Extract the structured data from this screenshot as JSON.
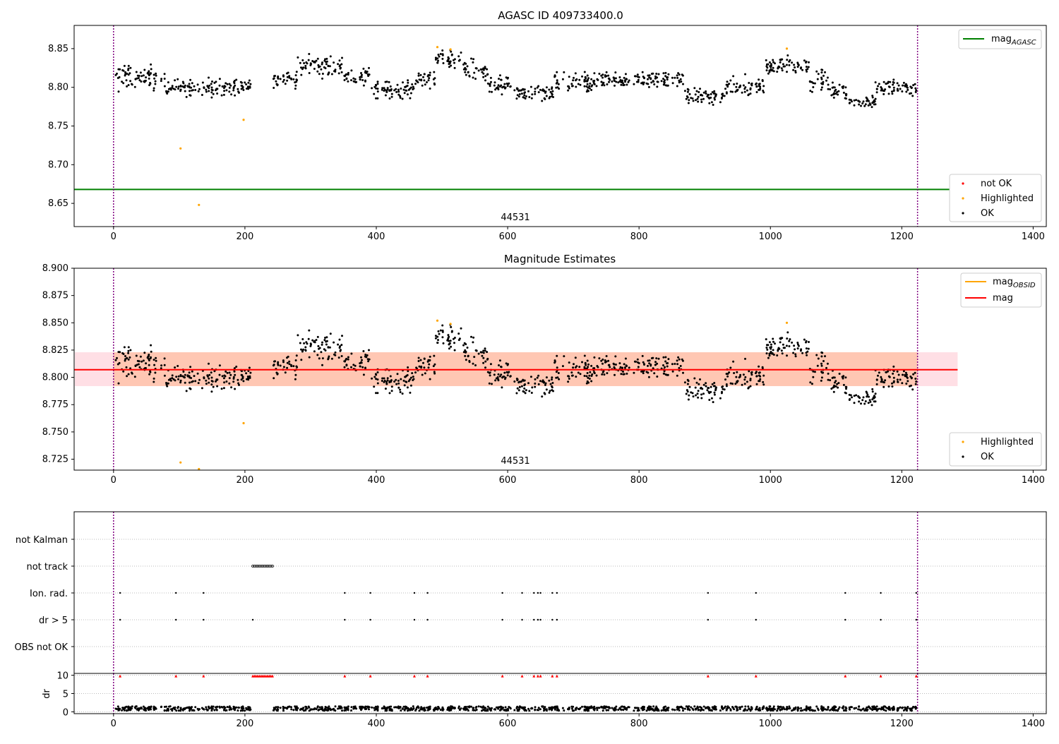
{
  "figure": {
    "panel1_title": "AGASC ID 409733400.0",
    "panel2_title": "Magnitude Estimates",
    "obsid_label": "44531"
  },
  "legends": {
    "panel1_line": "mag",
    "panel1_line_sub": "AGASC",
    "panel1_points": [
      "not OK",
      "Highlighted",
      "OK"
    ],
    "panel2_line_obsid": "mag",
    "panel2_line_obsid_sub": "OBSID",
    "panel2_line_mag": "mag",
    "panel2_points": [
      "Highlighted",
      "OK"
    ]
  },
  "colors": {
    "ok": "#000000",
    "highlighted": "#ffa500",
    "not_ok": "#ff0000",
    "agasc_line": "#008000",
    "mag_line": "#ff0000",
    "obsid_line": "#ffa500",
    "band_obsid": "#ffb38a",
    "band_overall": "#ffc0cb",
    "vline": "#800080",
    "flag_point": "#000000",
    "dr_flag_marker": "#ff0000"
  },
  "chart_data": [
    {
      "type": "scatter",
      "title": "AGASC ID 409733400.0",
      "xlim": [
        -60,
        1420
      ],
      "ylim": [
        8.62,
        8.88
      ],
      "xticks": [
        0,
        200,
        400,
        600,
        800,
        1000,
        1200,
        1400
      ],
      "yticks": [
        "8.65",
        "8.70",
        "8.75",
        "8.80",
        "8.85"
      ],
      "vlines_x": [
        0,
        1224
      ],
      "hline": {
        "name": "mag_AGASC",
        "y": 8.668
      },
      "gaps": [
        [
          210,
          243
        ]
      ],
      "segments": [
        {
          "x0": 0,
          "x1": 80,
          "base": 8.812,
          "amp": 0.012
        },
        {
          "x0": 80,
          "x1": 210,
          "base": 8.8,
          "amp": 0.008
        },
        {
          "x0": 243,
          "x1": 280,
          "base": 8.81,
          "amp": 0.008
        },
        {
          "x0": 280,
          "x1": 350,
          "base": 8.828,
          "amp": 0.01
        },
        {
          "x0": 350,
          "x1": 390,
          "base": 8.815,
          "amp": 0.008
        },
        {
          "x0": 390,
          "x1": 460,
          "base": 8.797,
          "amp": 0.008
        },
        {
          "x0": 460,
          "x1": 490,
          "base": 8.812,
          "amp": 0.01
        },
        {
          "x0": 490,
          "x1": 530,
          "base": 8.836,
          "amp": 0.008
        },
        {
          "x0": 530,
          "x1": 570,
          "base": 8.823,
          "amp": 0.01
        },
        {
          "x0": 570,
          "x1": 610,
          "base": 8.802,
          "amp": 0.008
        },
        {
          "x0": 610,
          "x1": 670,
          "base": 8.792,
          "amp": 0.008
        },
        {
          "x0": 670,
          "x1": 730,
          "base": 8.805,
          "amp": 0.01
        },
        {
          "x0": 730,
          "x1": 810,
          "base": 8.809,
          "amp": 0.008
        },
        {
          "x0": 810,
          "x1": 870,
          "base": 8.81,
          "amp": 0.008
        },
        {
          "x0": 870,
          "x1": 930,
          "base": 8.788,
          "amp": 0.008
        },
        {
          "x0": 930,
          "x1": 990,
          "base": 8.8,
          "amp": 0.01
        },
        {
          "x0": 990,
          "x1": 1060,
          "base": 8.828,
          "amp": 0.008
        },
        {
          "x0": 1060,
          "x1": 1090,
          "base": 8.808,
          "amp": 0.01
        },
        {
          "x0": 1090,
          "x1": 1120,
          "base": 8.795,
          "amp": 0.008
        },
        {
          "x0": 1120,
          "x1": 1160,
          "base": 8.782,
          "amp": 0.006
        },
        {
          "x0": 1160,
          "x1": 1224,
          "base": 8.8,
          "amp": 0.008
        }
      ],
      "highlighted": [
        {
          "x": 102,
          "y": 8.721
        },
        {
          "x": 130,
          "y": 8.648
        },
        {
          "x": 198,
          "y": 8.758
        },
        {
          "x": 493,
          "y": 8.852
        },
        {
          "x": 513,
          "y": 8.849
        },
        {
          "x": 1025,
          "y": 8.85
        }
      ]
    },
    {
      "type": "scatter",
      "title": "Magnitude Estimates",
      "xlim": [
        -60,
        1420
      ],
      "ylim": [
        8.715,
        8.9
      ],
      "xticks": [
        0,
        200,
        400,
        600,
        800,
        1000,
        1200,
        1400
      ],
      "yticks": [
        "8.725",
        "8.750",
        "8.775",
        "8.800",
        "8.825",
        "8.850",
        "8.875",
        "8.900"
      ],
      "vlines_x": [
        0,
        1224
      ],
      "mag_line": {
        "name": "mag",
        "y": 8.807,
        "x0": 0,
        "x1": 1285
      },
      "band_obsid": {
        "x0": 0,
        "x1": 1224,
        "y0": 8.792,
        "y1": 8.823
      },
      "band_overall": {
        "x0": -60,
        "x1": 1285,
        "y0": 8.792,
        "y1": 8.823
      },
      "highlighted": [
        {
          "x": 102,
          "y": 8.722
        },
        {
          "x": 130,
          "y": 8.716
        },
        {
          "x": 198,
          "y": 8.758
        },
        {
          "x": 493,
          "y": 8.852
        },
        {
          "x": 513,
          "y": 8.849
        },
        {
          "x": 1025,
          "y": 8.85
        }
      ]
    },
    {
      "type": "scatter",
      "categories": [
        "OBS not OK",
        "dr > 5",
        "Ion. rad.",
        "not track",
        "not Kalman"
      ],
      "xlim": [
        -60,
        1420
      ],
      "xticks": [
        0,
        200,
        400,
        600,
        800,
        1000,
        1200,
        1400
      ],
      "flag_events_x": [
        10,
        95,
        137,
        352,
        391,
        458,
        478,
        592,
        622,
        640,
        646,
        650,
        668,
        675,
        905,
        978,
        1114,
        1168,
        1222
      ],
      "not_track_range": [
        212,
        243
      ],
      "dr_flag_extra_x": [
        212,
        243
      ]
    },
    {
      "type": "scatter",
      "ylabel": "dr",
      "xlim": [
        -60,
        1420
      ],
      "ylim": [
        -0.5,
        10.5
      ],
      "yticks": [
        "0",
        "5",
        "10"
      ],
      "xticks": [
        0,
        200,
        400,
        600,
        800,
        1000,
        1200,
        1400
      ],
      "dr_baseline": 1.0,
      "dr_flag_value": 10
    }
  ]
}
